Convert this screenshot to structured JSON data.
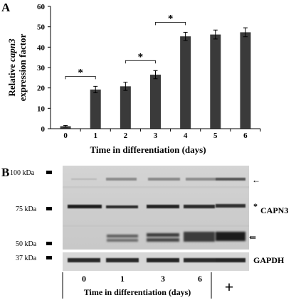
{
  "panel_a": {
    "letter": "A",
    "significance_mark": "*"
  },
  "chart_data": {
    "type": "bar",
    "categories": [
      "0",
      "1",
      "2",
      "3",
      "4",
      "5",
      "6"
    ],
    "values": [
      1.2,
      19.2,
      20.8,
      26.5,
      45.3,
      46.2,
      47.3
    ],
    "errors": [
      0.4,
      1.6,
      2.0,
      2.0,
      2.0,
      2.2,
      2.2
    ],
    "xlabel": "Time in differentiation (days)",
    "ylabel_line1_pre": "Relative ",
    "ylabel_line1_italic": "capn3",
    "ylabel_line2": "expression factor",
    "yticks": [
      "0",
      "10",
      "20",
      "30",
      "40",
      "50",
      "60"
    ],
    "ylim": [
      0,
      60
    ],
    "significance_brackets": [
      {
        "from": "0",
        "to": "1",
        "label": "*"
      },
      {
        "from": "2",
        "to": "3",
        "label": "*"
      },
      {
        "from": "3",
        "to": "4",
        "label": "*"
      }
    ],
    "bar_color": "#3a3a3a"
  },
  "panel_b": {
    "letter": "B",
    "size_markers": [
      "100 kDa",
      "75 kDa",
      "50 kDa",
      "37 kDa"
    ],
    "main_protein": "CAPN3",
    "loading_control": "GAPDH",
    "lanes": [
      "0",
      "1",
      "3",
      "6",
      "+"
    ],
    "xlabel": "Time in differentiation (days)",
    "asterisk": "*",
    "single_arrow": "←",
    "double_arrow": "⇐"
  }
}
